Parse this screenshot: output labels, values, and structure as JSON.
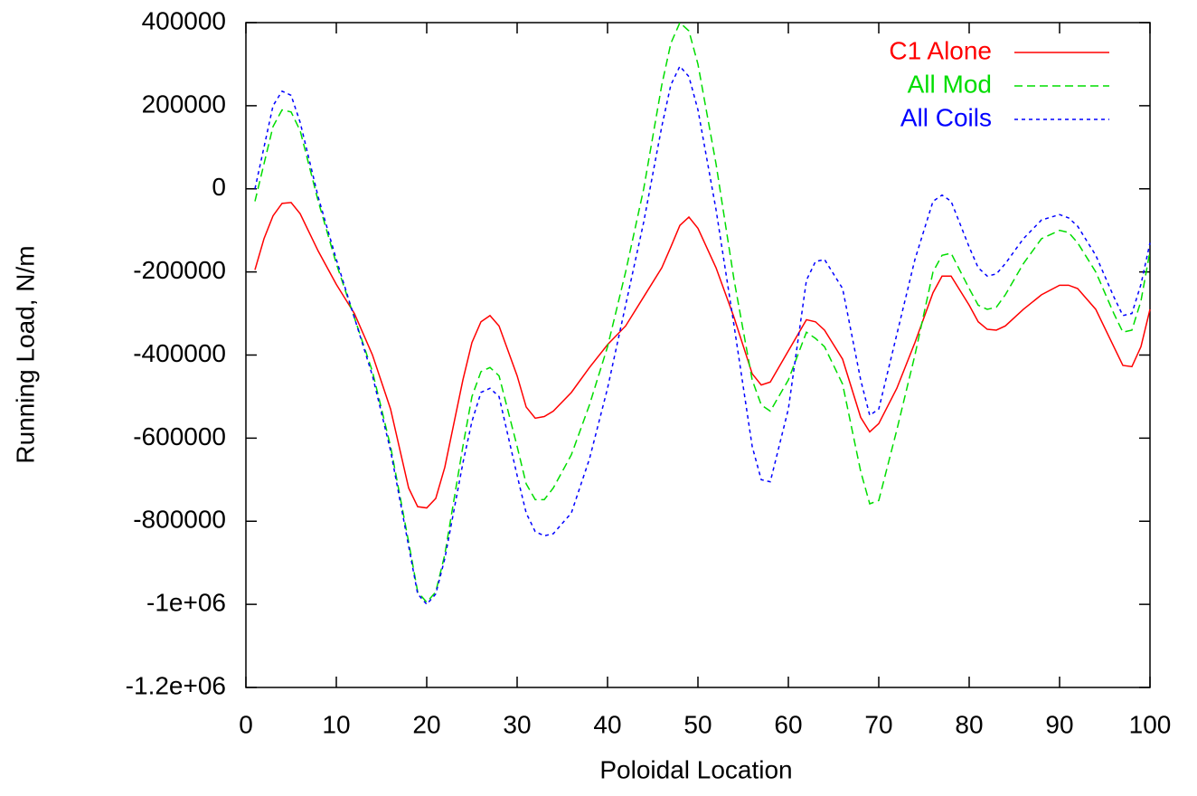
{
  "chart_data": {
    "type": "line",
    "xlabel": "Poloidal Location",
    "ylabel": "Running Load, N/m",
    "x": [
      1,
      2,
      3,
      4,
      5,
      6,
      8,
      10,
      12,
      14,
      16,
      18,
      19,
      20,
      21,
      22,
      24,
      25,
      26,
      27,
      28,
      30,
      31,
      32,
      33,
      34,
      36,
      38,
      40,
      42,
      44,
      46,
      47,
      48,
      49,
      50,
      52,
      54,
      56,
      57,
      58,
      60,
      62,
      63,
      64,
      66,
      68,
      69,
      70,
      72,
      74,
      76,
      77,
      78,
      80,
      81,
      82,
      83,
      84,
      86,
      88,
      90,
      91,
      92,
      94,
      96,
      97,
      98,
      99,
      100
    ],
    "series": [
      {
        "name": "C1 Alone",
        "color": "#ff0000",
        "dash": "none",
        "values": [
          -195000,
          -120000,
          -65000,
          -35000,
          -33000,
          -60000,
          -150000,
          -230000,
          -300000,
          -400000,
          -530000,
          -720000,
          -765000,
          -768000,
          -745000,
          -670000,
          -460000,
          -370000,
          -320000,
          -305000,
          -330000,
          -450000,
          -525000,
          -552000,
          -548000,
          -535000,
          -490000,
          -430000,
          -375000,
          -330000,
          -260000,
          -190000,
          -140000,
          -88000,
          -68000,
          -95000,
          -190000,
          -310000,
          -445000,
          -472000,
          -465000,
          -390000,
          -315000,
          -320000,
          -340000,
          -410000,
          -550000,
          -585000,
          -565000,
          -480000,
          -370000,
          -250000,
          -210000,
          -210000,
          -280000,
          -320000,
          -338000,
          -340000,
          -330000,
          -290000,
          -255000,
          -232000,
          -232000,
          -240000,
          -290000,
          -380000,
          -425000,
          -428000,
          -380000,
          -290000
        ]
      },
      {
        "name": "All Mod",
        "color": "#00dd00",
        "dash": "9 5",
        "values": [
          -30000,
          60000,
          150000,
          190000,
          185000,
          140000,
          -30000,
          -180000,
          -310000,
          -440000,
          -620000,
          -850000,
          -970000,
          -995000,
          -970000,
          -880000,
          -620000,
          -500000,
          -440000,
          -430000,
          -450000,
          -620000,
          -710000,
          -748000,
          -748000,
          -720000,
          -640000,
          -520000,
          -380000,
          -200000,
          0,
          250000,
          350000,
          400000,
          380000,
          300000,
          60000,
          -220000,
          -460000,
          -520000,
          -535000,
          -460000,
          -345000,
          -360000,
          -380000,
          -470000,
          -680000,
          -758000,
          -750000,
          -580000,
          -400000,
          -200000,
          -160000,
          -155000,
          -240000,
          -280000,
          -290000,
          -285000,
          -255000,
          -180000,
          -120000,
          -100000,
          -105000,
          -130000,
          -200000,
          -300000,
          -345000,
          -340000,
          -270000,
          -150000
        ]
      },
      {
        "name": "All Coils",
        "color": "#0000ff",
        "dash": "4 4",
        "values": [
          0,
          100000,
          200000,
          235000,
          225000,
          160000,
          -20000,
          -170000,
          -310000,
          -450000,
          -630000,
          -860000,
          -975000,
          -1000000,
          -975000,
          -890000,
          -660000,
          -560000,
          -490000,
          -480000,
          -500000,
          -690000,
          -780000,
          -825000,
          -835000,
          -830000,
          -780000,
          -650000,
          -480000,
          -280000,
          -80000,
          150000,
          250000,
          295000,
          270000,
          190000,
          -50000,
          -330000,
          -620000,
          -700000,
          -705000,
          -530000,
          -220000,
          -175000,
          -170000,
          -240000,
          -460000,
          -545000,
          -530000,
          -350000,
          -170000,
          -30000,
          -15000,
          -30000,
          -140000,
          -190000,
          -210000,
          -205000,
          -180000,
          -120000,
          -75000,
          -62000,
          -70000,
          -90000,
          -160000,
          -260000,
          -305000,
          -300000,
          -230000,
          -130000
        ]
      }
    ],
    "xlim": [
      0,
      100
    ],
    "xticks": [
      0,
      10,
      20,
      30,
      40,
      50,
      60,
      70,
      80,
      90,
      100
    ],
    "ylim": [
      -1200000,
      400000
    ],
    "yticks": [
      {
        "value": -1200000,
        "label": "-1.2e+06"
      },
      {
        "value": -1000000,
        "label": "-1e+06"
      },
      -800000,
      -600000,
      -400000,
      -200000,
      0,
      200000,
      400000
    ],
    "legend": "upper right"
  }
}
